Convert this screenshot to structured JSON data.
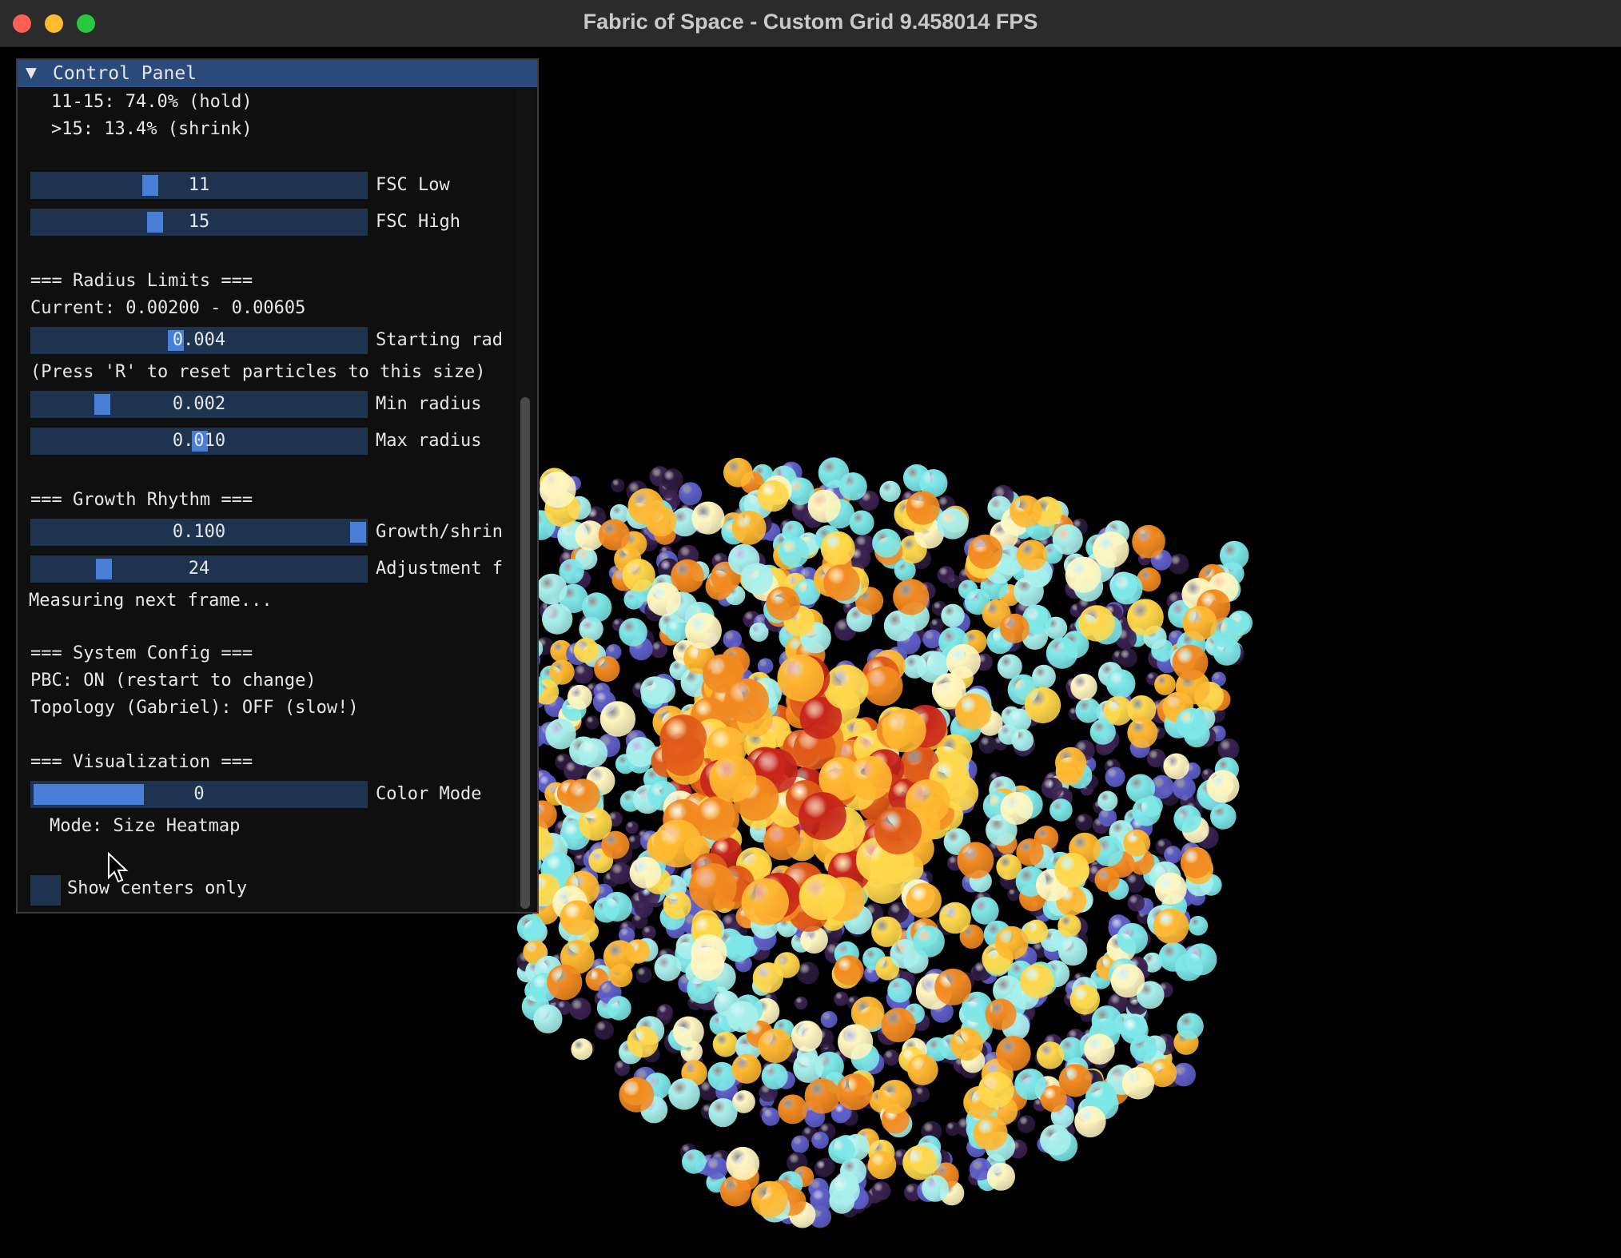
{
  "window": {
    "title": "Fabric of Space - Custom Grid  9.458014 FPS"
  },
  "panel": {
    "title": "Control Panel",
    "lines": {
      "hold": "11-15: 74.0% (hold)",
      "shrink": ">15: 13.4% (shrink)",
      "radius_header": "=== Radius Limits ===",
      "current": "Current: 0.00200 - 0.00605",
      "press_r": "(Press 'R' to reset particles to this size)",
      "growth_header": "=== Growth Rhythm ===",
      "measuring": "Measuring next frame...",
      "system_header": "=== System Config ===",
      "pbc": "PBC: ON (restart to change)",
      "topology": "Topology (Gabriel): OFF (slow!)",
      "vis_header": "=== Visualization ===",
      "mode": "Mode: Size Heatmap"
    },
    "sliders": {
      "fsc_low": {
        "value": "11",
        "label": "FSC Low"
      },
      "fsc_high": {
        "value": "15",
        "label": "FSC High"
      },
      "starting_rad": {
        "value": "0.004",
        "label": "Starting rad"
      },
      "min_radius": {
        "value": "0.002",
        "label": "Min radius"
      },
      "max_radius": {
        "value": "0.010",
        "label": "Max radius"
      },
      "growth": {
        "value": "0.100",
        "label": "Growth/shrin"
      },
      "adjustment": {
        "value": "24",
        "label": "Adjustment f"
      },
      "color_mode": {
        "value": "0",
        "label": "Color Mode"
      }
    },
    "checkbox": {
      "label": "Show centers only",
      "checked": false
    }
  },
  "colors": {
    "title_bar": "#2b2b2b",
    "panel_header": "#294a7a",
    "slider_bg": "#1e3350",
    "slider_grab": "#4a7fd8",
    "sphere_palette": [
      "#3b2250",
      "#2a1a3c",
      "#7ee8e8",
      "#a8f0ec",
      "#fff6c0",
      "#ffd84a",
      "#ffb830",
      "#f28a20",
      "#e05a18",
      "#c8261a",
      "#5e5ec8"
    ]
  }
}
